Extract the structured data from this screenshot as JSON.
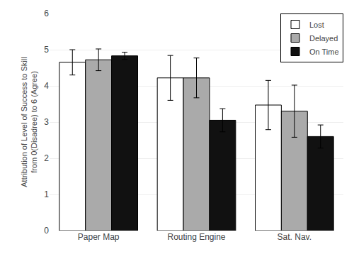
{
  "chart_data": {
    "type": "bar",
    "categories": [
      "Paper Map",
      "Routing Engine",
      "Sat. Nav."
    ],
    "series": [
      {
        "name": "Lost",
        "color": "#ffffff",
        "values": [
          4.65,
          4.22,
          3.47
        ],
        "errors": [
          0.35,
          0.62,
          0.68
        ]
      },
      {
        "name": "Delayed",
        "color": "#aaaaaa",
        "values": [
          4.72,
          4.22,
          3.3
        ],
        "errors": [
          0.3,
          0.55,
          0.72
        ]
      },
      {
        "name": "On Time",
        "color": "#111111",
        "values": [
          4.83,
          3.05,
          2.6
        ],
        "errors": [
          0.1,
          0.32,
          0.32
        ]
      }
    ],
    "ylabel": "Attribution of Level of Success to Skill\nfrom 0(Disadree) to 6 (Agree)",
    "ylim": [
      0,
      6
    ],
    "yticks": [
      0,
      1,
      2,
      3,
      4,
      5,
      6
    ],
    "grid": true,
    "legend": "upper right"
  }
}
